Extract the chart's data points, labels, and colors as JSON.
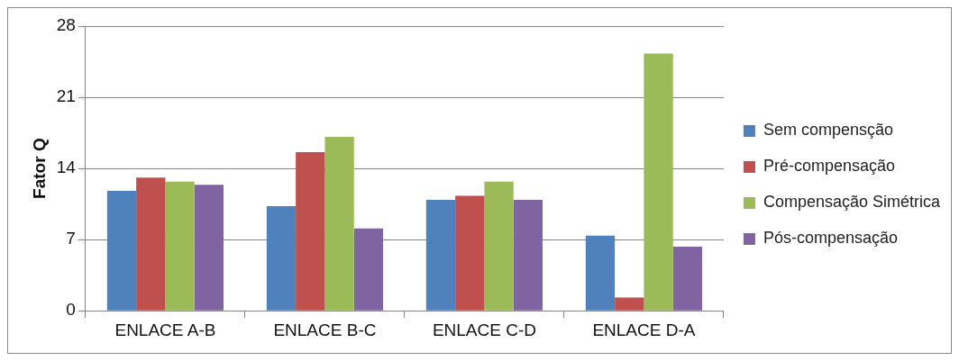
{
  "chart_data": {
    "type": "bar",
    "ylabel": "Fator Q",
    "categories": [
      "ENLACE A-B",
      "ENLACE B-C",
      "ENLACE C-D",
      "ENLACE D-A"
    ],
    "series": [
      {
        "name": "Sem compensção",
        "color": "#4f81bd",
        "values": [
          11.8,
          10.3,
          10.9,
          7.4
        ]
      },
      {
        "name": "Pré-compensação",
        "color": "#c0504d",
        "values": [
          13.1,
          15.6,
          11.3,
          1.3
        ]
      },
      {
        "name": "Compensação Simétrica",
        "color": "#9bbb59",
        "values": [
          12.7,
          17.1,
          12.7,
          25.3
        ]
      },
      {
        "name": "Pós-compensação",
        "color": "#8064a2",
        "values": [
          12.4,
          8.1,
          10.9,
          6.3
        ]
      }
    ],
    "ylim": [
      0,
      28
    ],
    "yticks": [
      0,
      7,
      14,
      21,
      28
    ],
    "grid": "y",
    "legend": "right"
  }
}
